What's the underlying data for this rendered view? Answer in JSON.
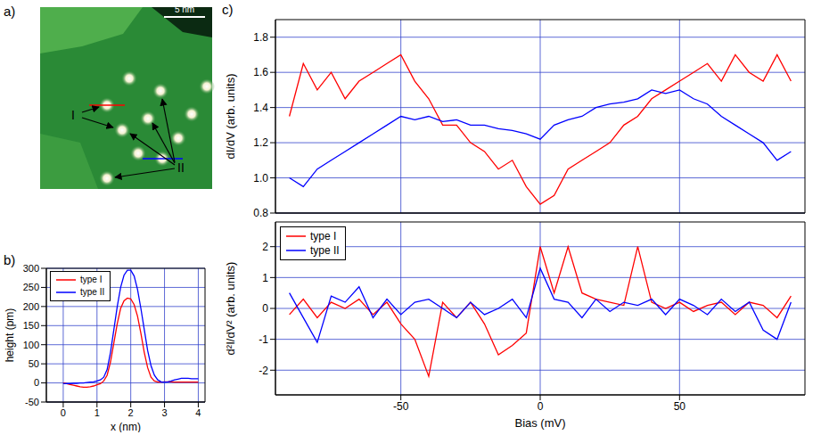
{
  "image": {
    "panel": "a)",
    "scale_bar": "5 nm",
    "labels": [
      "I",
      "II"
    ]
  },
  "chart_data": [
    {
      "panel": "b)",
      "type": "line",
      "x": [
        0,
        0.1,
        0.2,
        0.3,
        0.4,
        0.5,
        0.6,
        0.7,
        0.8,
        0.9,
        1.0,
        1.1,
        1.2,
        1.3,
        1.4,
        1.5,
        1.6,
        1.7,
        1.8,
        1.9,
        2.0,
        2.1,
        2.2,
        2.3,
        2.4,
        2.5,
        2.6,
        2.7,
        2.8,
        2.9,
        3.0,
        3.1,
        3.2,
        3.3,
        3.4,
        3.5,
        3.6,
        3.7,
        3.8,
        3.9,
        4.0
      ],
      "series": [
        {
          "name": "type I",
          "color": "#ff0000",
          "values": [
            0,
            -2,
            -4,
            -6,
            -8,
            -10,
            -11,
            -11,
            -10,
            -8,
            -5,
            -2,
            5,
            20,
            55,
            105,
            155,
            195,
            215,
            222,
            220,
            205,
            175,
            130,
            80,
            40,
            15,
            5,
            2,
            2,
            3,
            3,
            3,
            2,
            2,
            2,
            2,
            2,
            2,
            2,
            2
          ]
        },
        {
          "name": "type II",
          "color": "#0000ff",
          "values": [
            -2,
            -2,
            -2,
            -1,
            -1,
            0,
            0,
            1,
            2,
            3,
            5,
            8,
            15,
            35,
            80,
            140,
            200,
            250,
            282,
            295,
            295,
            280,
            245,
            195,
            140,
            85,
            45,
            20,
            8,
            3,
            2,
            3,
            5,
            8,
            10,
            12,
            12,
            12,
            11,
            11,
            11
          ]
        }
      ],
      "x_label": "x (nm)",
      "y_label": "height (pm)",
      "xlim": [
        -0.5,
        4.2
      ],
      "xticks": [
        0,
        1,
        2,
        3,
        4
      ],
      "ylim": [
        -50,
        300
      ],
      "yticks": [
        -50,
        0,
        50,
        100,
        150,
        200,
        250,
        300
      ],
      "grid": true,
      "legend": "upper left"
    },
    {
      "panel": "c)",
      "type": "line",
      "x": [
        -90,
        -85,
        -80,
        -75,
        -70,
        -65,
        -60,
        -55,
        -50,
        -45,
        -40,
        -35,
        -30,
        -25,
        -20,
        -15,
        -10,
        -5,
        0,
        5,
        10,
        15,
        20,
        25,
        30,
        35,
        40,
        45,
        50,
        55,
        60,
        65,
        70,
        75,
        80,
        85,
        90
      ],
      "series": [
        {
          "name": "type I",
          "color": "#ff0000",
          "values": [
            1.35,
            1.65,
            1.5,
            1.6,
            1.45,
            1.55,
            1.6,
            1.65,
            1.7,
            1.55,
            1.45,
            1.3,
            1.3,
            1.2,
            1.15,
            1.05,
            1.1,
            0.95,
            0.85,
            0.9,
            1.05,
            1.1,
            1.15,
            1.2,
            1.3,
            1.35,
            1.45,
            1.5,
            1.55,
            1.6,
            1.65,
            1.55,
            1.7,
            1.6,
            1.55,
            1.7,
            1.55
          ]
        },
        {
          "name": "type II",
          "color": "#0000ff",
          "values": [
            1.0,
            0.95,
            1.05,
            1.1,
            1.15,
            1.2,
            1.25,
            1.3,
            1.35,
            1.33,
            1.35,
            1.32,
            1.33,
            1.3,
            1.3,
            1.28,
            1.27,
            1.25,
            1.22,
            1.3,
            1.33,
            1.35,
            1.4,
            1.42,
            1.43,
            1.45,
            1.5,
            1.48,
            1.5,
            1.45,
            1.42,
            1.35,
            1.3,
            1.25,
            1.2,
            1.1,
            1.15
          ]
        }
      ],
      "y_label": "dI/dV (arb. units)",
      "xlim": [
        -95,
        95
      ],
      "xticks": [
        -50,
        0,
        50
      ],
      "ylim": [
        0.8,
        1.9
      ],
      "yticks": [
        0.8,
        {
          "value": 1,
          "label": "1.0"
        },
        1.2,
        1.4,
        1.6,
        1.8
      ],
      "grid": true,
      "tick_labels": "y"
    },
    {
      "type": "line",
      "x": [
        -90,
        -85,
        -80,
        -75,
        -70,
        -65,
        -60,
        -55,
        -50,
        -45,
        -40,
        -35,
        -30,
        -25,
        -20,
        -15,
        -10,
        -5,
        0,
        5,
        10,
        15,
        20,
        25,
        30,
        35,
        40,
        45,
        50,
        55,
        60,
        65,
        70,
        75,
        80,
        85,
        90
      ],
      "series": [
        {
          "name": "type I",
          "color": "#ff0000",
          "values": [
            -0.2,
            0.3,
            -0.3,
            0.2,
            0,
            0.3,
            -0.2,
            0.2,
            -0.5,
            -1.0,
            -2.2,
            0.2,
            -0.3,
            0.2,
            -0.5,
            -1.5,
            -1.2,
            -0.8,
            2.0,
            0.5,
            2.0,
            0.5,
            0.3,
            0.2,
            0.1,
            2.0,
            0.2,
            0,
            0.2,
            -0.1,
            0.1,
            0.2,
            -0.2,
            0.2,
            0.1,
            -0.3,
            0.4
          ]
        },
        {
          "name": "type II",
          "color": "#0000ff",
          "values": [
            0.5,
            -0.3,
            -1.1,
            0.4,
            0.2,
            0.7,
            -0.3,
            0.3,
            -0.2,
            0.2,
            0.3,
            0,
            -0.3,
            0.2,
            -0.2,
            0,
            0.3,
            -0.3,
            1.3,
            0.3,
            0.2,
            -0.3,
            0.3,
            -0.1,
            0.2,
            0.1,
            0.3,
            -0.2,
            0.3,
            0.1,
            -0.2,
            0.3,
            -0.1,
            0.2,
            -0.7,
            -1.0,
            0.2
          ]
        }
      ],
      "x_label": "Bias (mV)",
      "y_label": "d²I/dV² (arb. units)",
      "xlim": [
        -95,
        95
      ],
      "xticks": [
        -50,
        0,
        50
      ],
      "ylim": [
        -2.8,
        2.8
      ],
      "yticks": [
        -2,
        -1,
        0,
        1,
        2
      ],
      "grid": true,
      "legend": "upper left"
    }
  ]
}
